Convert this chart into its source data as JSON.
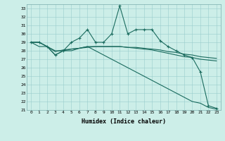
{
  "xlabel": "Humidex (Indice chaleur)",
  "background_color": "#cceee8",
  "grid_color": "#99cccc",
  "line_color": "#1a6b5e",
  "xlim": [
    -0.5,
    23.5
  ],
  "ylim": [
    21,
    33.5
  ],
  "xticks": [
    0,
    1,
    2,
    3,
    4,
    5,
    6,
    7,
    8,
    9,
    10,
    11,
    12,
    13,
    14,
    15,
    16,
    17,
    18,
    19,
    20,
    21,
    22,
    23
  ],
  "yticks": [
    21,
    22,
    23,
    24,
    25,
    26,
    27,
    28,
    29,
    30,
    31,
    32,
    33
  ],
  "series1_x": [
    0,
    1,
    2,
    3,
    4,
    5,
    6,
    7,
    8,
    9,
    10,
    11,
    12,
    13,
    14,
    15,
    16,
    17,
    18,
    19,
    20,
    21,
    22,
    23
  ],
  "series1_y": [
    29,
    29,
    28.5,
    27.5,
    28,
    29,
    29.5,
    30.5,
    29,
    29,
    30,
    33.3,
    30,
    30.5,
    30.5,
    30.5,
    29.2,
    28.5,
    28,
    27.5,
    27.2,
    25.5,
    21.5,
    21.2
  ],
  "series2_x": [
    0,
    1,
    2,
    3,
    4,
    5,
    6,
    7,
    8,
    9,
    10,
    11,
    12,
    13,
    14,
    15,
    16,
    17,
    18,
    19,
    20,
    21,
    22,
    23
  ],
  "series2_y": [
    29,
    29,
    28.5,
    28.0,
    28.0,
    28.2,
    28.3,
    28.4,
    28.5,
    28.5,
    28.5,
    28.5,
    28.4,
    28.4,
    28.3,
    28.2,
    28.1,
    27.9,
    27.8,
    27.6,
    27.5,
    27.3,
    27.2,
    27.1
  ],
  "series3_x": [
    0,
    1,
    2,
    3,
    4,
    5,
    6,
    7,
    8,
    9,
    10,
    11,
    12,
    13,
    14,
    15,
    16,
    17,
    18,
    19,
    20,
    21,
    22,
    23
  ],
  "series3_y": [
    29,
    29,
    28.5,
    27.9,
    28.1,
    28.2,
    28.3,
    28.5,
    28.5,
    28.5,
    28.5,
    28.5,
    28.4,
    28.3,
    28.2,
    28.1,
    27.9,
    27.7,
    27.5,
    27.3,
    27.2,
    27.0,
    26.9,
    26.8
  ],
  "series4_x": [
    0,
    1,
    2,
    3,
    4,
    5,
    6,
    7,
    8,
    9,
    10,
    11,
    12,
    13,
    14,
    15,
    16,
    17,
    18,
    19,
    20,
    21,
    22,
    23
  ],
  "series4_y": [
    29,
    28.5,
    28.5,
    27.5,
    28.0,
    28.0,
    28.3,
    28.5,
    28.0,
    27.5,
    27.0,
    26.5,
    26.0,
    25.5,
    25.0,
    24.5,
    24.0,
    23.5,
    23.0,
    22.5,
    22.0,
    21.8,
    21.3,
    21.1
  ]
}
